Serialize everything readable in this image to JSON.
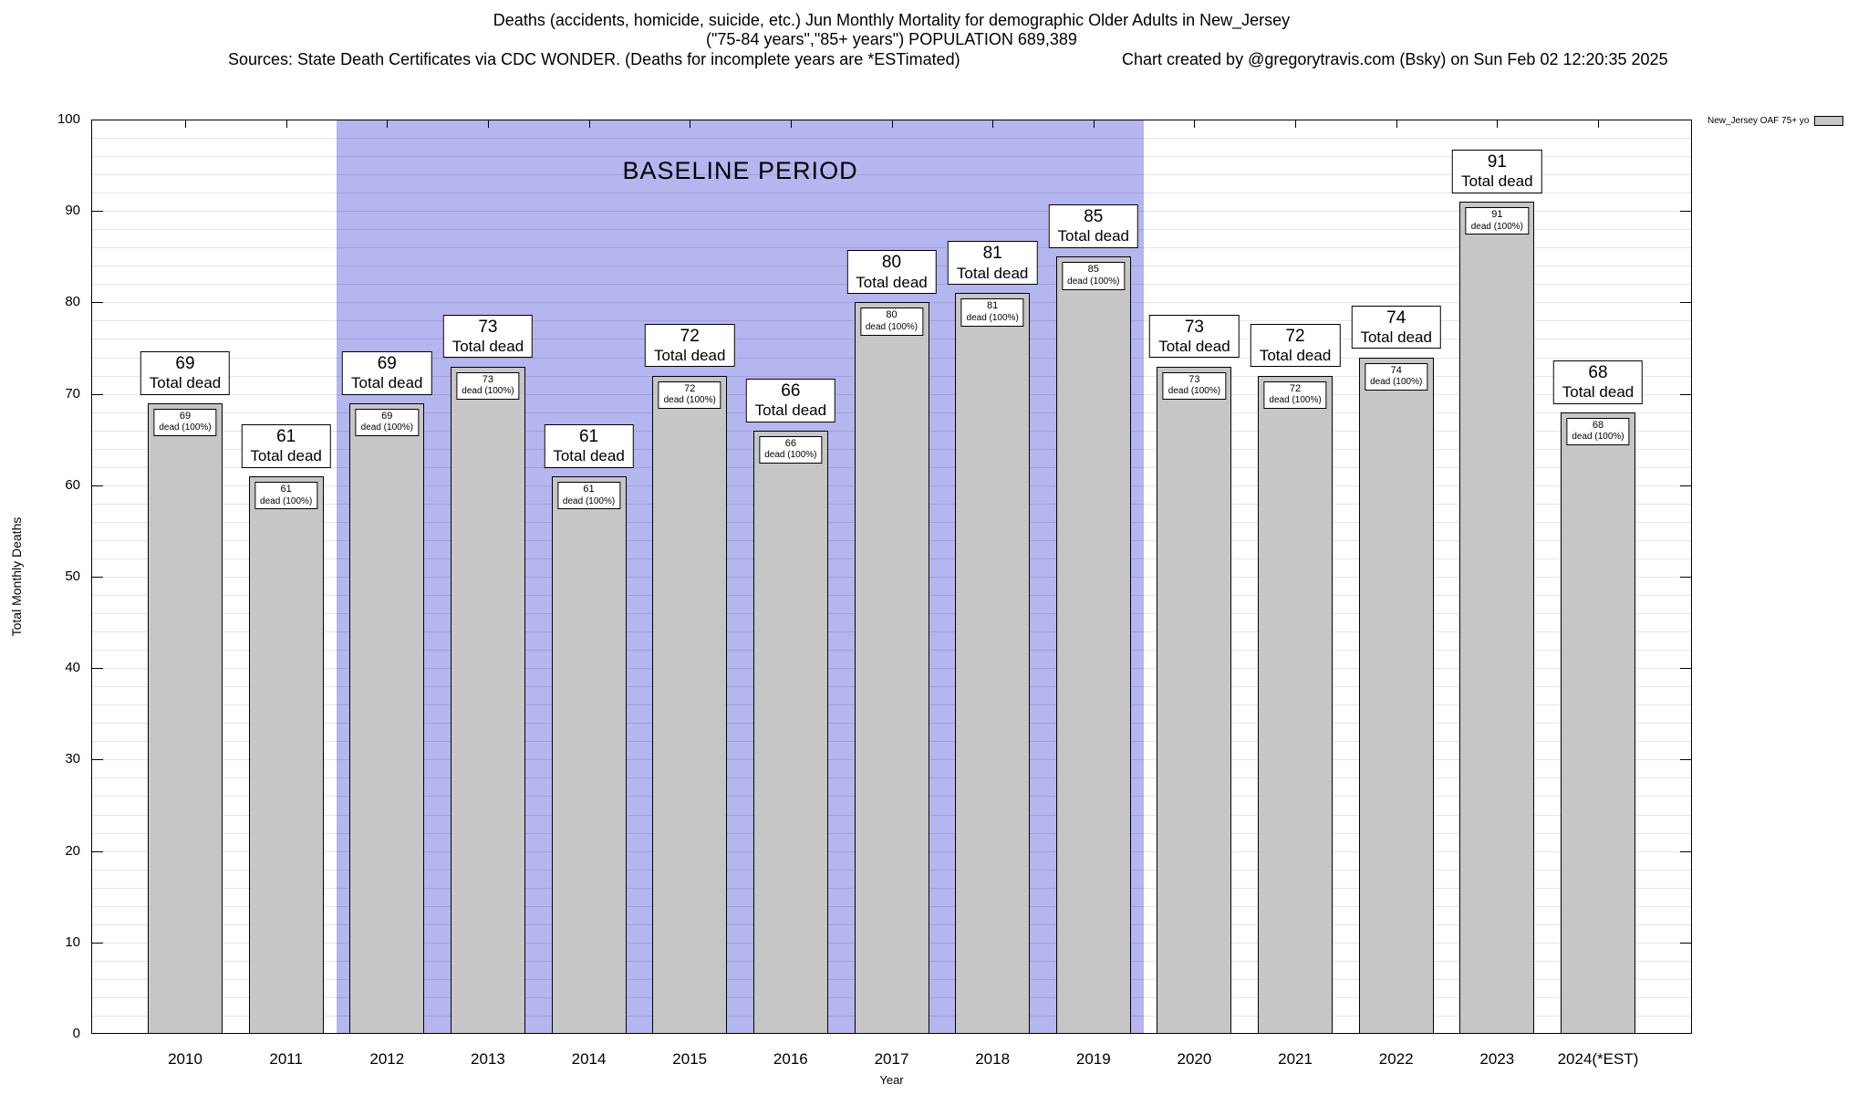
{
  "header": {
    "sources": "Sources: State Death Certificates via CDC WONDER. (Deaths for incomplete years are *ESTimated)",
    "credit": "Chart created by @gregorytravis.com (Bsky) on Sun Feb 02 12:20:35 2025"
  },
  "chart_data": {
    "type": "bar",
    "title": "Deaths (accidents, homicide, suicide, etc.) Jun Monthly Mortality for demographic Older Adults in New_Jersey",
    "subtitle": "(\"75-84 years\",\"85+ years\") POPULATION 689,389",
    "categories": [
      "2010",
      "2011",
      "2012",
      "2013",
      "2014",
      "2015",
      "2016",
      "2017",
      "2018",
      "2019",
      "2020",
      "2021",
      "2022",
      "2023",
      "2024(*EST)"
    ],
    "values": [
      69,
      61,
      69,
      73,
      61,
      72,
      66,
      80,
      81,
      85,
      73,
      72,
      74,
      91,
      68
    ],
    "xlabel": "Year",
    "ylabel": "Total Monthly Deaths",
    "ylim": [
      0,
      100
    ],
    "ytick_step": 10,
    "minor_grid_step": 2,
    "grid": true,
    "bar_color": "#c6c6c6",
    "bar_border_color": "#000000",
    "bar_labels": {
      "total_suffix": "Total dead",
      "inner_suffix": "dead (100%)"
    },
    "baseline_region": {
      "label": "BASELINE PERIOD",
      "start_category": "2012",
      "end_category": "2019",
      "color": "#b5b5f0"
    },
    "legend": {
      "label": "New_Jersey OAF 75+ yo",
      "swatch_color": "#c6c6c6",
      "position": "top-right"
    }
  }
}
